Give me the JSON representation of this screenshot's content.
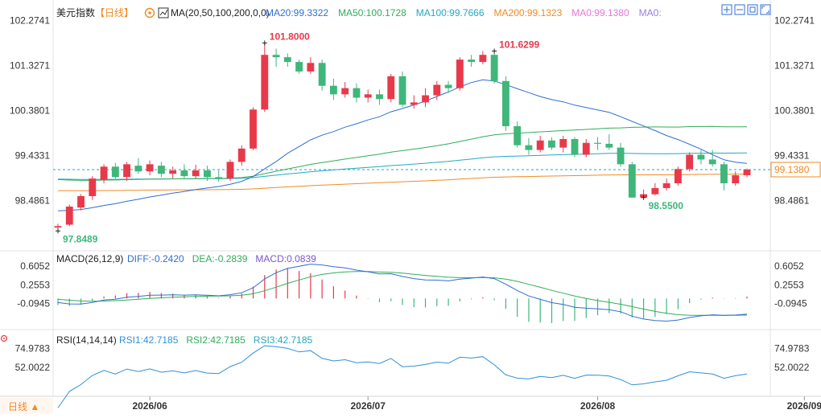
{
  "header": {
    "symbol": "美元指数",
    "period": "【日线】",
    "ma_label": "MA(20,50,100,200,0,0)",
    "ma_values": [
      {
        "text": "MA20:99.3322",
        "color": "#2f6fd2"
      },
      {
        "text": "MA50:100.1728",
        "color": "#2fae5a"
      },
      {
        "text": "MA100:99.7666",
        "color": "#25a8c2"
      },
      {
        "text": "MA200:99.1323",
        "color": "#f08a24"
      },
      {
        "text": "MA0:99.1380",
        "color": "#e776d8"
      },
      {
        "text": "MA0:",
        "color": "#9a7de0"
      }
    ]
  },
  "toolbar": {
    "icons": [
      "zoom-in-icon",
      "zoom-out-icon",
      "restore-icon",
      "maximize-icon"
    ]
  },
  "colors": {
    "up": "#e8394b",
    "down": "#3fb67a",
    "ma20": "#2f6fd2",
    "ma50": "#2fae5a",
    "ma100": "#25a8c2",
    "ma200": "#f08a24",
    "diff": "#2f6fd2",
    "dea": "#2fae5a",
    "rsi": "#2f90d8",
    "hline": "#2aa3c9",
    "cur_box": "#f08a24",
    "cur_text": "#f08a24"
  },
  "chart_data": [
    {
      "type": "candlestick",
      "title": "美元指数",
      "y_ticks": [
        "102.2741",
        "101.3271",
        "100.3801",
        "99.4331",
        "98.4861"
      ],
      "y_tick_values": [
        102.2741,
        101.3271,
        100.3801,
        99.4331,
        98.4861
      ],
      "ylim": [
        97.6,
        102.5
      ],
      "x_ticks": [
        {
          "label": "2026/06",
          "index": 8
        },
        {
          "label": "2026/07",
          "index": 27
        },
        {
          "label": "2026/08",
          "index": 47
        },
        {
          "label": "2026/09",
          "index": 65
        }
      ],
      "current_price": 99.138,
      "current_label": "99.1380",
      "annotations": [
        {
          "text": "101.8000",
          "index": 18,
          "value": 101.8,
          "type": "high"
        },
        {
          "text": "101.6299",
          "index": 38,
          "value": 101.63,
          "type": "high"
        },
        {
          "text": "98.5500",
          "index": 51,
          "value": 98.55,
          "type": "low"
        },
        {
          "text": "97.8489",
          "index": 0,
          "value": 97.8489,
          "type": "low"
        }
      ],
      "candles": [
        [
          97.92,
          97.95,
          97.85,
          98.0
        ],
        [
          97.98,
          98.36,
          97.95,
          98.4
        ],
        [
          98.34,
          98.58,
          98.28,
          98.62
        ],
        [
          98.58,
          98.95,
          98.5,
          99.0
        ],
        [
          98.92,
          99.2,
          98.85,
          99.25
        ],
        [
          99.2,
          98.98,
          98.95,
          99.28
        ],
        [
          98.98,
          99.25,
          98.9,
          99.3
        ],
        [
          99.22,
          99.1,
          99.05,
          99.38
        ],
        [
          99.1,
          99.25,
          99.02,
          99.33
        ],
        [
          99.22,
          99.05,
          98.98,
          99.3
        ],
        [
          99.05,
          99.12,
          98.95,
          99.2
        ],
        [
          99.12,
          99.0,
          98.95,
          99.25
        ],
        [
          99.0,
          99.12,
          98.95,
          99.24
        ],
        [
          99.12,
          98.98,
          98.9,
          99.22
        ],
        [
          98.98,
          98.95,
          98.88,
          99.12
        ],
        [
          98.95,
          99.3,
          98.9,
          99.35
        ],
        [
          99.3,
          99.58,
          99.22,
          99.65
        ],
        [
          99.58,
          100.4,
          99.55,
          100.45
        ],
        [
          100.4,
          101.55,
          100.35,
          101.8
        ],
        [
          101.55,
          101.5,
          101.3,
          101.68
        ],
        [
          101.5,
          101.4,
          101.3,
          101.58
        ],
        [
          101.4,
          101.2,
          101.15,
          101.45
        ],
        [
          101.2,
          101.38,
          101.15,
          101.5
        ],
        [
          101.38,
          100.9,
          100.8,
          101.45
        ],
        [
          100.9,
          100.72,
          100.6,
          101.05
        ],
        [
          100.72,
          100.85,
          100.65,
          100.98
        ],
        [
          100.85,
          100.65,
          100.55,
          100.95
        ],
        [
          100.65,
          100.72,
          100.55,
          100.82
        ],
        [
          100.72,
          100.62,
          100.5,
          100.82
        ],
        [
          100.62,
          101.1,
          100.55,
          101.15
        ],
        [
          101.1,
          100.5,
          100.45,
          101.2
        ],
        [
          100.5,
          100.55,
          100.42,
          100.7
        ],
        [
          100.55,
          100.7,
          100.45,
          100.85
        ],
        [
          100.7,
          100.92,
          100.6,
          101.0
        ],
        [
          100.92,
          100.85,
          100.75,
          101.0
        ],
        [
          100.85,
          101.45,
          100.8,
          101.5
        ],
        [
          101.45,
          101.4,
          101.3,
          101.55
        ],
        [
          101.4,
          101.55,
          101.35,
          101.63
        ],
        [
          101.55,
          101.0,
          100.95,
          101.6
        ],
        [
          101.0,
          100.05,
          99.95,
          101.1
        ],
        [
          100.05,
          99.65,
          99.6,
          100.15
        ],
        [
          99.65,
          99.55,
          99.45,
          99.8
        ],
        [
          99.55,
          99.75,
          99.5,
          99.85
        ],
        [
          99.75,
          99.6,
          99.55,
          99.82
        ],
        [
          99.6,
          99.78,
          99.5,
          99.85
        ],
        [
          99.78,
          99.45,
          99.4,
          99.82
        ],
        [
          99.45,
          99.7,
          99.4,
          99.78
        ],
        [
          99.7,
          99.68,
          99.55,
          99.82
        ],
        [
          99.68,
          99.6,
          99.55,
          99.88
        ],
        [
          99.6,
          99.25,
          99.2,
          99.7
        ],
        [
          99.25,
          98.55,
          98.55,
          99.3
        ],
        [
          98.55,
          98.62,
          98.55,
          98.72
        ],
        [
          98.62,
          98.75,
          98.6,
          98.85
        ],
        [
          98.75,
          98.85,
          98.7,
          98.95
        ],
        [
          98.85,
          99.15,
          98.8,
          99.2
        ],
        [
          99.15,
          99.45,
          99.1,
          99.5
        ],
        [
          99.45,
          99.35,
          99.25,
          99.55
        ],
        [
          99.35,
          99.25,
          99.2,
          99.55
        ],
        [
          99.25,
          98.85,
          98.7,
          99.3
        ],
        [
          98.85,
          99.02,
          98.8,
          99.1
        ],
        [
          99.02,
          99.138,
          98.98,
          99.16
        ]
      ]
    },
    {
      "type": "line",
      "title": "MACD(26,12,9)",
      "legend": [
        {
          "text": "DIFF:-0.2420",
          "color": "#2f6fd2"
        },
        {
          "text": "DEA:-0.2839",
          "color": "#2fae5a"
        },
        {
          "text": "MACD:0.0839",
          "color": "#7a56d0"
        }
      ],
      "y_ticks": [
        "0.6052",
        "0.2553",
        "-0.0945"
      ],
      "y_tick_values": [
        0.6052,
        0.2553,
        -0.0945
      ],
      "ylim": [
        -0.52,
        0.8
      ]
    },
    {
      "type": "line",
      "title": "RSI(14,14,14)",
      "legend": [
        {
          "text": "RSI1:42.7185",
          "color": "#2f90d8"
        },
        {
          "text": "RSI2:42.7185",
          "color": "#2fae5a"
        },
        {
          "text": "RSI3:42.7185",
          "color": "#25a8c2"
        }
      ],
      "y_ticks": [
        "74.9783",
        "52.0022"
      ],
      "y_tick_values": [
        74.9783,
        52.0022
      ],
      "ylim": [
        20,
        88
      ]
    }
  ],
  "footer": {
    "period_button": "日线 ▲"
  }
}
